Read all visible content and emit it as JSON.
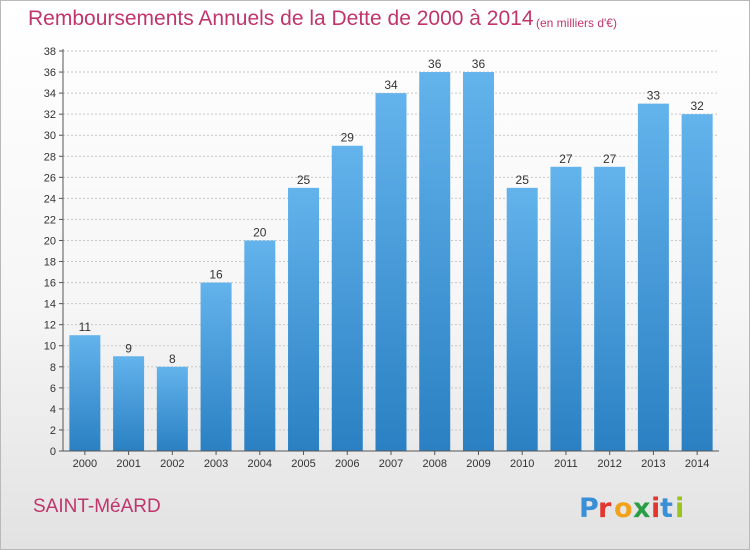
{
  "title": "Remboursements Annuels de la Dette de 2000 à 2014",
  "unit_note": "(en milliers d'€)",
  "commune": "SAINT-MéARD",
  "logo_text": "Proxiti",
  "colors": {
    "bar_light": "#63b3ec",
    "bar_dark": "#2a80c2",
    "title": "#c0356b",
    "grid": "#c8c8c8"
  },
  "chart_data": {
    "type": "bar",
    "categories": [
      "2000",
      "2001",
      "2002",
      "2003",
      "2004",
      "2005",
      "2006",
      "2007",
      "2008",
      "2009",
      "2010",
      "2011",
      "2012",
      "2013",
      "2014"
    ],
    "values": [
      11,
      9,
      8,
      16,
      20,
      25,
      29,
      34,
      36,
      36,
      25,
      27,
      27,
      33,
      32
    ],
    "ylim": [
      0,
      38
    ],
    "yticks": [
      0,
      2,
      4,
      6,
      8,
      10,
      12,
      14,
      16,
      18,
      20,
      22,
      24,
      26,
      28,
      30,
      32,
      34,
      36,
      38
    ],
    "grid": true,
    "legend": "none"
  }
}
